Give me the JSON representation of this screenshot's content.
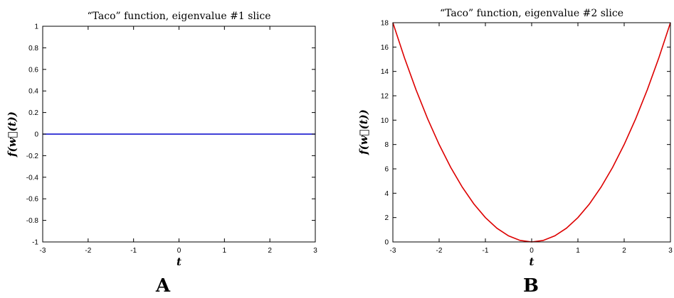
{
  "chart_data": [
    {
      "type": "line",
      "title": "“Taco” function, eigenvalue #1 slice",
      "xlabel": "t",
      "ylabel": "f(w⃗(t))",
      "panel_label": "A",
      "xlim": [
        -3,
        3
      ],
      "ylim": [
        -1,
        1
      ],
      "xticks": [
        -3,
        -2,
        -1,
        0,
        1,
        2,
        3
      ],
      "xtick_labels": [
        "-3",
        "-2",
        "-1",
        "0",
        "1",
        "2",
        "3"
      ],
      "yticks": [
        -1,
        -0.8,
        -0.6,
        -0.4,
        -0.2,
        0,
        0.2,
        0.4,
        0.6,
        0.8,
        1
      ],
      "ytick_labels": [
        "-1",
        "-0.8",
        "-0.6",
        "-0.4",
        "-0.2",
        "0",
        "0.2",
        "0.4",
        "0.6",
        "0.8",
        "1"
      ],
      "grid": false,
      "series": [
        {
          "color": "#0000cc",
          "x": [
            -3,
            -2,
            -1,
            0,
            1,
            2,
            3
          ],
          "y": [
            0,
            0,
            0,
            0,
            0,
            0,
            0
          ]
        }
      ]
    },
    {
      "type": "line",
      "title": "“Taco” function, eigenvalue #2 slice",
      "xlabel": "t",
      "ylabel": "f(w⃗(t))",
      "panel_label": "B",
      "xlim": [
        -3,
        3
      ],
      "ylim": [
        0,
        18
      ],
      "xticks": [
        -3,
        -2,
        -1,
        0,
        1,
        2,
        3
      ],
      "xtick_labels": [
        "-3",
        "-2",
        "-1",
        "0",
        "1",
        "2",
        "3"
      ],
      "yticks": [
        0,
        2,
        4,
        6,
        8,
        10,
        12,
        14,
        16,
        18
      ],
      "ytick_labels": [
        "0",
        "2",
        "4",
        "6",
        "8",
        "10",
        "12",
        "14",
        "16",
        "18"
      ],
      "grid": false,
      "series": [
        {
          "color": "#dd0000",
          "x": [
            -3,
            -2.75,
            -2.5,
            -2.25,
            -2,
            -1.75,
            -1.5,
            -1.25,
            -1,
            -0.75,
            -0.5,
            -0.25,
            0,
            0.25,
            0.5,
            0.75,
            1,
            1.25,
            1.5,
            1.75,
            2,
            2.25,
            2.5,
            2.75,
            3
          ],
          "y": [
            18,
            15.125,
            12.5,
            10.125,
            8,
            6.125,
            4.5,
            3.125,
            2,
            1.125,
            0.5,
            0.125,
            0,
            0.125,
            0.5,
            1.125,
            2,
            3.125,
            4.5,
            6.125,
            8,
            10.125,
            12.5,
            15.125,
            18
          ]
        }
      ]
    }
  ]
}
